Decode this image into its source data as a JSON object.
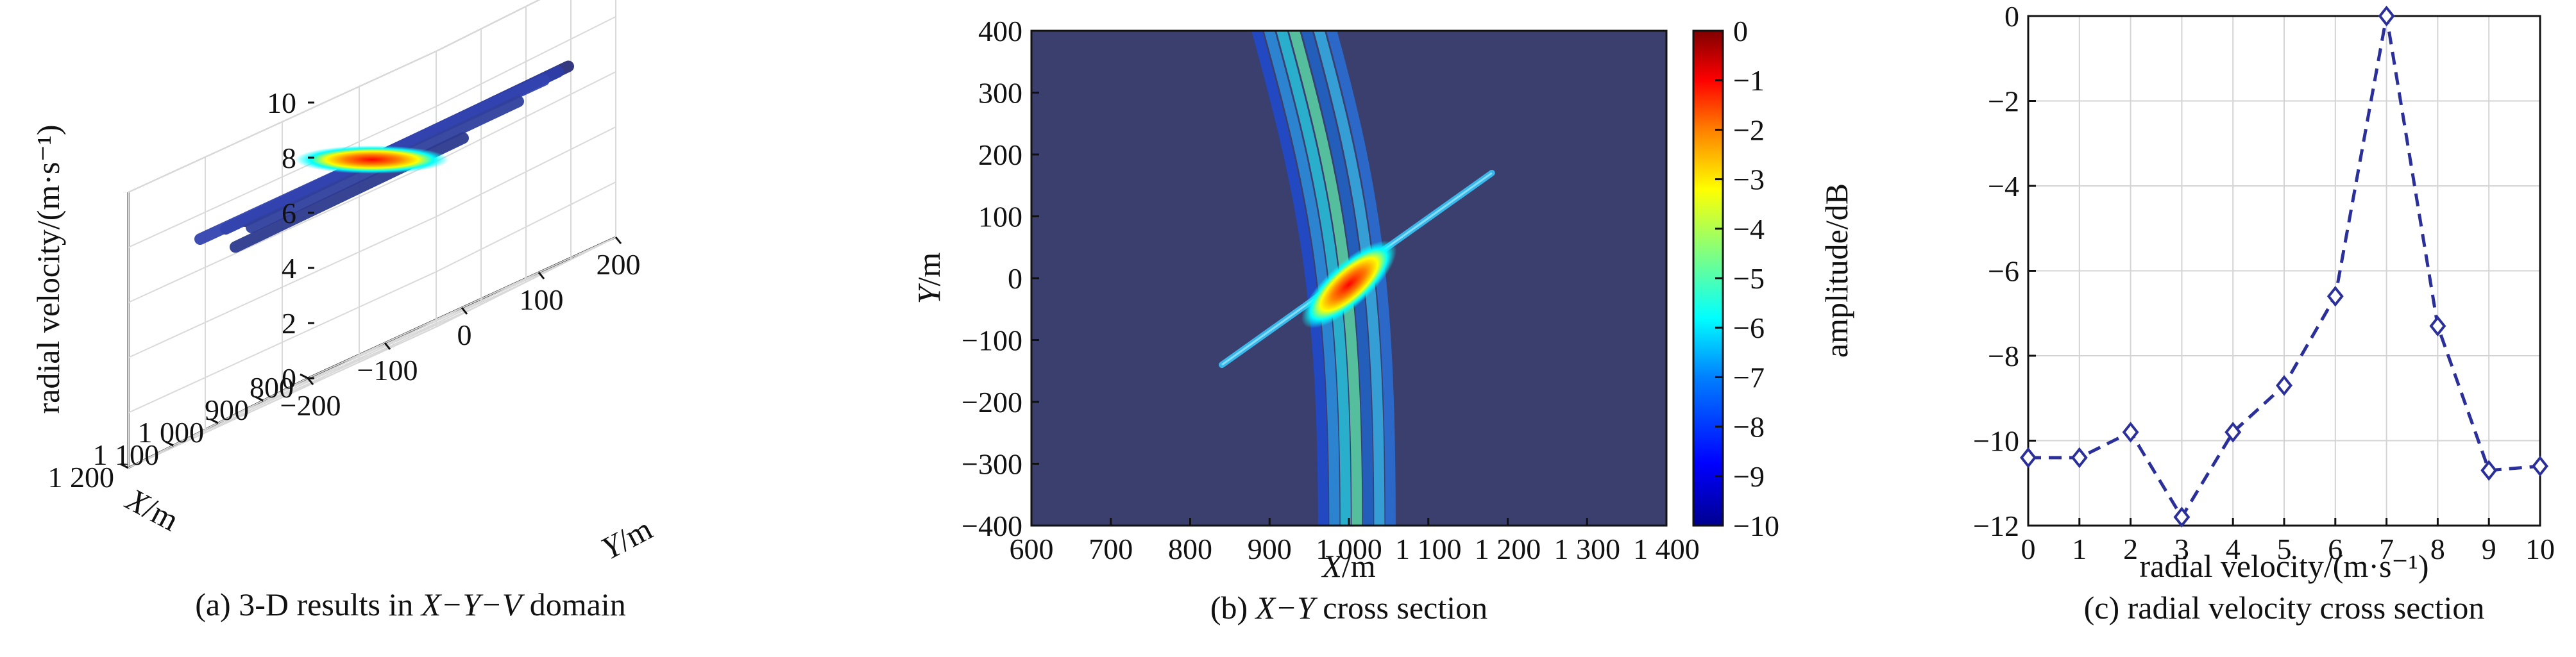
{
  "chart_data": [
    {
      "type": "scatter",
      "panel": "a",
      "caption_prefix": "(a) 3-D results in ",
      "caption_italic": "X−Y−V",
      "caption_suffix": " domain",
      "zlabel": "radial velocity/(m·s⁻¹)",
      "xlabel": "X/m",
      "ylabel": "Y/m",
      "zticks": [
        "0",
        "2",
        "4",
        "6",
        "8",
        "10"
      ],
      "zlim": [
        0,
        10
      ],
      "xticks": [
        "1 200",
        "1 100",
        "1 000",
        "900",
        "800"
      ],
      "xlim": [
        800,
        1200
      ],
      "yticks": [
        "−200",
        "−100",
        "0",
        "100",
        "200"
      ],
      "ylim": [
        -200,
        200
      ],
      "grid": true,
      "tracks": [
        {
          "x0": 1180,
          "y0": -60,
          "x1": 820,
          "y1": 150,
          "v": 7,
          "color": "#2a2f7a"
        },
        {
          "x0": 1120,
          "y0": -120,
          "x1": 860,
          "y1": 160,
          "v": 7,
          "color": "#2e3ea8"
        },
        {
          "x0": 1040,
          "y0": -200,
          "x1": 960,
          "y1": 200,
          "v": 7,
          "color": "#3344b0"
        },
        {
          "x0": 1080,
          "y0": -110,
          "x1": 880,
          "y1": 120,
          "v": 6.6,
          "color": "#30409c"
        },
        {
          "x0": 1150,
          "y0": -90,
          "x1": 900,
          "y1": 60,
          "v": 6.2,
          "color": "#2d3a8f"
        }
      ],
      "peak": {
        "x": 1000,
        "y": 0,
        "v": 7
      }
    },
    {
      "type": "heatmap",
      "panel": "b",
      "caption_prefix": "(b) ",
      "caption_italic": "X−Y",
      "caption_suffix": " cross section",
      "xlabel": "X/m",
      "ylabel": "Y/m",
      "xticks": [
        "600",
        "700",
        "800",
        "900",
        "1 000",
        "1 100",
        "1 200",
        "1 300",
        "1 400"
      ],
      "xlim": [
        600,
        1400
      ],
      "yticks": [
        "400",
        "300",
        "200",
        "100",
        "0",
        "−100",
        "−200",
        "−300",
        "−400"
      ],
      "ylim": [
        -400,
        400
      ],
      "colorbar_ticks": [
        "0",
        "−1",
        "−2",
        "−3",
        "−4",
        "−5",
        "−6",
        "−7",
        "−8",
        "−9",
        "−10"
      ],
      "colorbar_range": [
        -10,
        0
      ],
      "colormap": [
        "#00008f",
        "#0000ff",
        "#0080ff",
        "#00ffff",
        "#80ff80",
        "#ffff00",
        "#ff8000",
        "#ff0000",
        "#800000"
      ],
      "background_color": "#3b3f6e",
      "features": {
        "diagonal_line": {
          "x0": 840,
          "y0": -140,
          "x1": 1180,
          "y1": 170
        },
        "curved_band": {
          "top_x": 930,
          "bottom_x": 1010,
          "width": 110
        },
        "peak": {
          "x": 1000,
          "y": -10,
          "value": 0
        }
      }
    },
    {
      "type": "line",
      "panel": "c",
      "caption": "(c) radial velocity cross section",
      "xlabel": "radial velocity/(m·s⁻¹)",
      "ylabel": "amplitude/dB",
      "x": [
        0,
        1,
        2,
        3,
        4,
        5,
        6,
        7,
        8,
        9,
        10
      ],
      "values": [
        -10.4,
        -10.4,
        -9.8,
        -11.8,
        -9.8,
        -8.7,
        -6.6,
        0,
        -7.3,
        -10.7,
        -10.6
      ],
      "xlim": [
        0,
        10
      ],
      "ylim": [
        -12,
        0
      ],
      "xticks": [
        "0",
        "1",
        "2",
        "3",
        "4",
        "5",
        "6",
        "7",
        "8",
        "9",
        "10"
      ],
      "yticks": [
        "0",
        "−2",
        "−4",
        "−6",
        "−8",
        "−10",
        "−12"
      ],
      "grid": true,
      "line_style": "dashed",
      "marker": "diamond",
      "color": "#2b2f9a"
    }
  ]
}
